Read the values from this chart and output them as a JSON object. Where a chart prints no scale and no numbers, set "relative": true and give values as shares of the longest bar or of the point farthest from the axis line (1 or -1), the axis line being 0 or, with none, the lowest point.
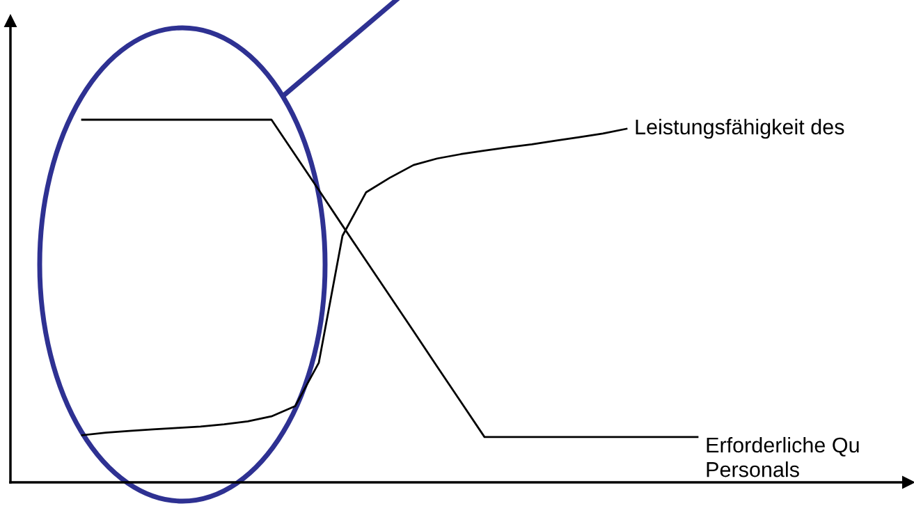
{
  "chart_data": {
    "type": "line",
    "relative": true,
    "legend": false,
    "marker": "none",
    "line_style": "solid",
    "categories": [
      null,
      null,
      null,
      null,
      null,
      null,
      null,
      null,
      null,
      null,
      null,
      null,
      null,
      null,
      null,
      null,
      null,
      null,
      null,
      null,
      null,
      null,
      null,
      null,
      null,
      null,
      null
    ],
    "series": [
      {
        "name": "Erforderliche Qu\nPersonals",
        "color": "#000000",
        "values": [
          1,
          1,
          1,
          1,
          1,
          1,
          1,
          1,
          1,
          0.903,
          0.806,
          0.708,
          0.611,
          0.514,
          0.417,
          0.319,
          0.222,
          0.125,
          0.125,
          0.125,
          0.125,
          0.125,
          0.125,
          0.125,
          0.125,
          0.125,
          0.125
        ]
      },
      {
        "name": "Leistungsfähigkeit des",
        "color": "#000000",
        "values": [
          0.13,
          0.137,
          0.142,
          0.146,
          0.15,
          0.154,
          0.16,
          0.168,
          0.182,
          0.21,
          0.33,
          0.68,
          0.8,
          0.84,
          0.875,
          0.893,
          0.905,
          0.915,
          0.924,
          0.932,
          0.942,
          0.952,
          0.962,
          0.975,
          null,
          null,
          null
        ]
      }
    ]
  }
}
